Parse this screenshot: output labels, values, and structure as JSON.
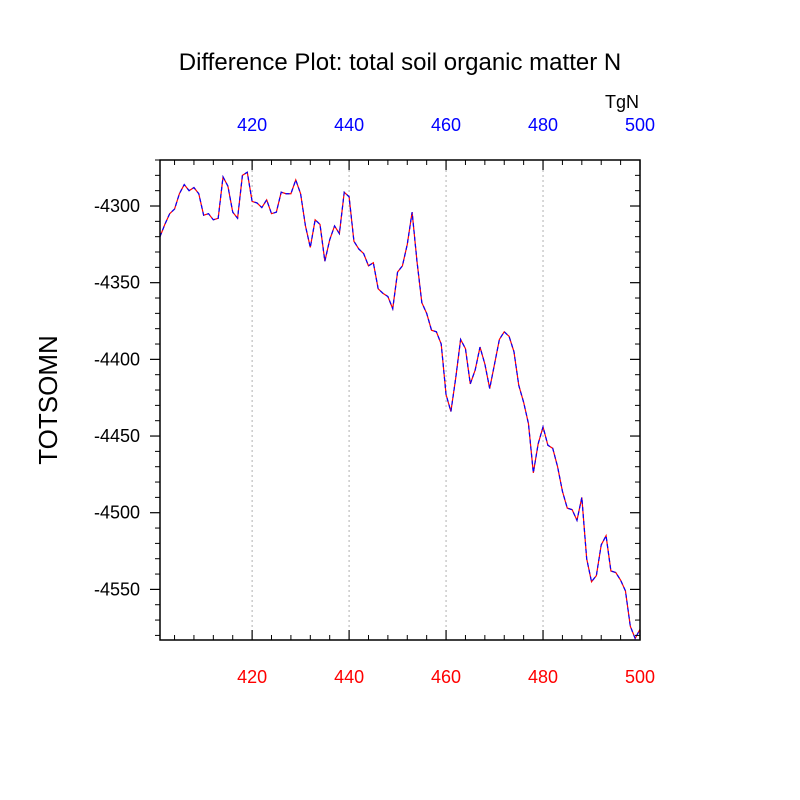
{
  "chart_data": {
    "type": "line",
    "title": "Difference Plot: total soil organic matter N",
    "ylabel": "TOTSOMN",
    "xlabel": "",
    "units_label": "TgN",
    "xlim": [
      401,
      500
    ],
    "ylim": [
      -4583,
      -4270
    ],
    "x_ticks": [
      420,
      440,
      460,
      480,
      500
    ],
    "y_ticks": [
      -4300,
      -4350,
      -4400,
      -4450,
      -4500,
      -4550
    ],
    "grid": "vertical dotted at major x ticks",
    "top_tick_color": "#0000ff",
    "bottom_tick_color": "#ff0000",
    "series": [
      {
        "line_colors": [
          "#0000ff",
          "#ff0000"
        ],
        "style": "dashed",
        "x": [
          401,
          402,
          403,
          404,
          405,
          406,
          407,
          408,
          409,
          410,
          411,
          412,
          413,
          414,
          415,
          416,
          417,
          418,
          419,
          420,
          421,
          422,
          423,
          424,
          425,
          426,
          427,
          428,
          429,
          430,
          431,
          432,
          433,
          434,
          435,
          436,
          437,
          438,
          439,
          440,
          441,
          442,
          443,
          444,
          445,
          446,
          447,
          448,
          449,
          450,
          451,
          452,
          453,
          454,
          455,
          456,
          457,
          458,
          459,
          460,
          461,
          462,
          463,
          464,
          465,
          466,
          467,
          468,
          469,
          470,
          471,
          472,
          473,
          474,
          475,
          476,
          477,
          478,
          479,
          480,
          481,
          482,
          483,
          484,
          485,
          486,
          487,
          488,
          489,
          490,
          491,
          492,
          493,
          494,
          495,
          496,
          497,
          498,
          499,
          500
        ],
        "y": [
          -4320,
          -4312,
          -4305,
          -4302,
          -4292,
          -4286,
          -4290,
          -4288,
          -4292,
          -4306,
          -4305,
          -4309,
          -4308,
          -4281,
          -4287,
          -4304,
          -4308,
          -4280,
          -4278,
          -4297,
          -4298,
          -4301,
          -4296,
          -4305,
          -4304,
          -4291,
          -4292,
          -4292,
          -4283,
          -4292,
          -4313,
          -4327,
          -4309,
          -4312,
          -4336,
          -4322,
          -4313,
          -4318,
          -4291,
          -4294,
          -4323,
          -4328,
          -4331,
          -4339,
          -4337,
          -4354,
          -4357,
          -4359,
          -4367,
          -4343,
          -4339,
          -4325,
          -4304,
          -4336,
          -4363,
          -4370,
          -4381,
          -4382,
          -4390,
          -4423,
          -4434,
          -4412,
          -4387,
          -4393,
          -4416,
          -4407,
          -4392,
          -4403,
          -4419,
          -4403,
          -4387,
          -4382,
          -4385,
          -4395,
          -4417,
          -4428,
          -4442,
          -4474,
          -4455,
          -4444,
          -4456,
          -4458,
          -4470,
          -4486,
          -4497,
          -4498,
          -4505,
          -4490,
          -4530,
          -4545,
          -4541,
          -4521,
          -4515,
          -4538,
          -4539,
          -4544,
          -4551,
          -4574,
          -4582,
          -4576
        ]
      }
    ]
  }
}
